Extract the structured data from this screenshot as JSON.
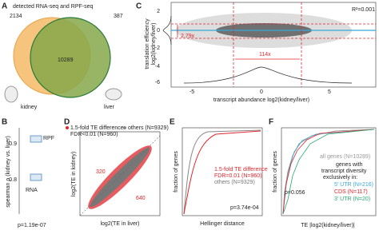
{
  "panels": {
    "a": {
      "label": "A",
      "title": "detected RNA-seq and RPF-seq",
      "counts": [
        "2134",
        "10289",
        "387"
      ],
      "organs": [
        "kidney",
        "liver"
      ]
    },
    "c": {
      "label": "C",
      "y_label": [
        "translation efficiency",
        "log2(kidney/liver)"
      ],
      "x_label": "transcript abundance log2(kidney/liver)",
      "yticks": [
        "2",
        "0",
        "-2",
        "-4",
        "-6"
      ],
      "xticks": [
        "-5",
        "0",
        "5"
      ],
      "r2": "R²=0.001",
      "te_fold": "2.79x",
      "rna_fold": "114x"
    },
    "b": {
      "label": "B",
      "y_label": "spearman ρ (kidney vs. liver)",
      "yticks": [
        "0.9",
        "0.8"
      ],
      "groups": [
        "RPF",
        "RNA"
      ],
      "p_value": "p=1.19e-07"
    },
    "d": {
      "label": "D",
      "legend": [
        "1.5-fold TE difference",
        "FDR<0.01 (N=960)",
        "others (N=9329)"
      ],
      "counts": [
        "320",
        "640"
      ],
      "y_label": "log2(TE in kidney)",
      "x_label": "log2(TE in liver)"
    },
    "e": {
      "label": "E",
      "legend": [
        "1.5-fold TE difference",
        "FDR=0.01 (N=960)",
        "others (N=9329)"
      ],
      "y_label": "fraction of genes",
      "x_label": "Hellinger distance",
      "p_value": "p=3.74e-04"
    },
    "f": {
      "label": "F",
      "all_genes": "all genes (N=10289)",
      "heading": [
        "genes with",
        "transcript diversity",
        "exclusively in:"
      ],
      "groups": [
        "5' UTR (N=216)",
        "CDS (N=117)",
        "3' UTR (N=20)"
      ],
      "p_value": "p=0.056",
      "y_label": "fraction of genes",
      "x_label": "TE |log2(kidney/liver)|"
    }
  }
}
